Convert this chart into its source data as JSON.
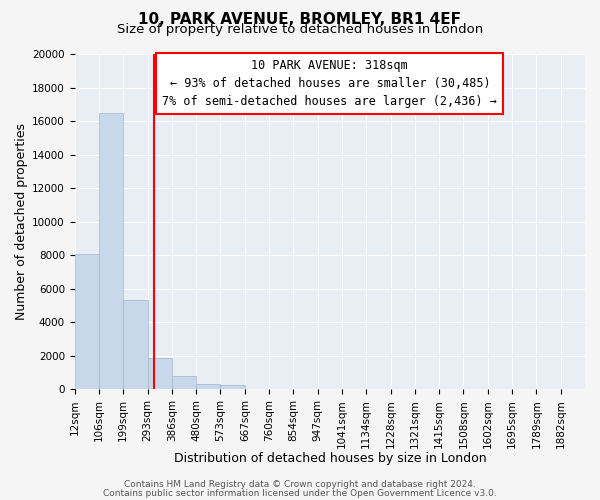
{
  "title": "10, PARK AVENUE, BROMLEY, BR1 4EF",
  "subtitle": "Size of property relative to detached houses in London",
  "xlabel": "Distribution of detached houses by size in London",
  "ylabel": "Number of detached properties",
  "bar_labels": [
    "12sqm",
    "106sqm",
    "199sqm",
    "293sqm",
    "386sqm",
    "480sqm",
    "573sqm",
    "667sqm",
    "760sqm",
    "854sqm",
    "947sqm",
    "1041sqm",
    "1134sqm",
    "1228sqm",
    "1321sqm",
    "1415sqm",
    "1508sqm",
    "1602sqm",
    "1695sqm",
    "1789sqm",
    "1882sqm"
  ],
  "bar_heights": [
    8100,
    16500,
    5300,
    1900,
    800,
    300,
    250,
    0,
    0,
    0,
    0,
    0,
    0,
    0,
    0,
    0,
    0,
    0,
    0,
    0,
    0
  ],
  "bar_color": "#c8d8ea",
  "bar_edge_color": "#a0b8cc",
  "ylim": [
    0,
    20000
  ],
  "yticks": [
    0,
    2000,
    4000,
    6000,
    8000,
    10000,
    12000,
    14000,
    16000,
    18000,
    20000
  ],
  "annotation_box_text_line1": "10 PARK AVENUE: 318sqm",
  "annotation_box_text_line2": "← 93% of detached houses are smaller (30,485)",
  "annotation_box_text_line3": "7% of semi-detached houses are larger (2,436) →",
  "footer_line1": "Contains HM Land Registry data © Crown copyright and database right 2024.",
  "footer_line2": "Contains public sector information licensed under the Open Government Licence v3.0.",
  "background_color": "#f5f5f5",
  "plot_bg_color": "#e8eef4",
  "grid_color": "#ffffff",
  "title_fontsize": 11,
  "subtitle_fontsize": 9.5,
  "axis_label_fontsize": 9,
  "tick_fontsize": 7.5,
  "annotation_fontsize": 8.5,
  "footer_fontsize": 6.5
}
